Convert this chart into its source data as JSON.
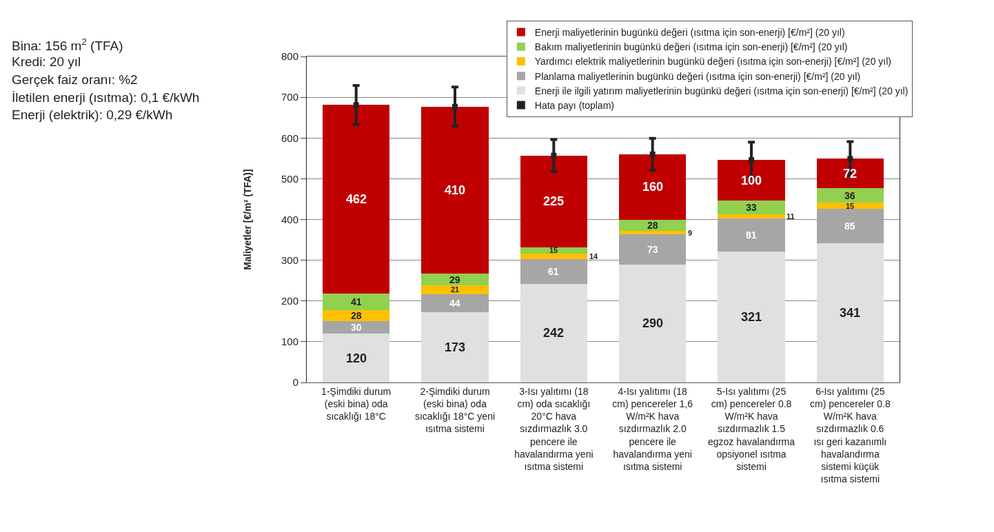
{
  "chart_data": {
    "type": "bar",
    "stacked": true,
    "ylabel": "Maliyetler [€/m² (TFA)]",
    "categories": [
      "1-Şimdiki durum (eski bina) oda sıcaklığı 18°C",
      "2-Şimdiki durum (eski bina) oda sıcaklığı 18°C yeni ısıtma sistemi",
      "3-Isı yalıtımı (18 cm) oda sıcaklığı 20°C hava sızdırmazlık 3.0 pencere ile havalandırma yeni ısıtma sistemi",
      "4-Isı yalıtımı (18 cm) pencereler 1,6 W/m²K hava sızdırmazlık 2.0 pencere ile havalandırma yeni ısıtma sistemi",
      "5-Isı yalıtımı (25 cm) pencereler 0.8 W/m²K hava sızdırmazlık 1.5 egzoz havalandırma opsiyonel ısıtma sistemi",
      "6-Isı yalıtımı (25 cm) pencereler 0.8 W/m²K hava sızdırmazlık 0.6 ısı geri kazanımlı havalandırma sistemi küçük ısıtma sistemi"
    ],
    "series": [
      {
        "name": "Enerji ile ilgili yatırım maliyetlerinin bugünkü değeri (ısıtma için son-enerji) [€/m²] (20 yıl)",
        "color": "#e0e0e0",
        "values": [
          120,
          173,
          242,
          290,
          321,
          341
        ],
        "value_labels": [
          "120",
          "173",
          "242",
          "290",
          "321",
          "341"
        ]
      },
      {
        "name": "Planlama maliyetlerinin bugünkü değeri (ısıtma için son-enerji) [€/m²] (20 yıl)",
        "color": "#a6a6a6",
        "values": [
          30,
          44,
          61,
          73,
          81,
          85
        ],
        "value_labels": [
          "30",
          "44",
          "61",
          "73",
          "81",
          "85"
        ]
      },
      {
        "name": "Yardımcı elektrik maliyetlerinin bugünkü değeri (ısıtma için son-enerji) [€/m²] (20 yıl)",
        "color": "#ffc000",
        "values": [
          28,
          21,
          14,
          9,
          11,
          15
        ],
        "value_labels": [
          "28",
          "21",
          "14",
          "9",
          "11",
          "15"
        ]
      },
      {
        "name": "Bakım maliyetlerinin bugünkü değeri (ısıtma için son-enerji) [€/m²] (20 yıl)",
        "color": "#92d050",
        "values": [
          41,
          29,
          15,
          28,
          33,
          36
        ],
        "value_labels": [
          "41",
          "29",
          "15",
          "28",
          "33",
          "36"
        ]
      },
      {
        "name": "Enerji maliyetlerinin bugünkü değeri (ısıtma için son-enerji) [€/m²] (20 yıl)",
        "color": "#c00000",
        "values": [
          462,
          410,
          225,
          160,
          100,
          72
        ],
        "value_labels": [
          "462",
          "410",
          "225",
          "160",
          "100",
          "72"
        ]
      },
      {
        "name": "Hata payı (toplam)",
        "type": "scatter",
        "marker": "square",
        "color": "#222222",
        "values": [
          681,
          677,
          557,
          560,
          546,
          549
        ],
        "errors": [
          48,
          48,
          39,
          39,
          44,
          42
        ]
      }
    ],
    "ylim": [
      0,
      800
    ],
    "yticks": [
      0,
      100,
      200,
      300,
      400,
      500,
      600,
      700,
      800
    ],
    "grid": "y",
    "legend": "top right",
    "annotations": [
      "Bina: 156 m$^{2}$ (TFA)",
      "Kredi: 20 yıl",
      "Gerçek faiz oranı: %2",
      "İletilen enerji (ısıtma): 0,1 €/kWh",
      "Enerji (elektrik): 0,29 €/kWh"
    ]
  }
}
